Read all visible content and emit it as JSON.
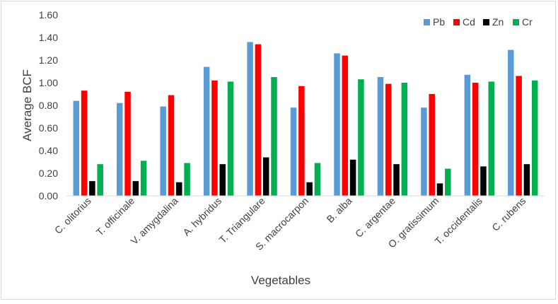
{
  "chart_data": {
    "type": "bar",
    "title": "",
    "xlabel": "Vegetables",
    "ylabel": "Average BCF",
    "ylim": [
      0,
      1.6
    ],
    "ytick_step": 0.2,
    "ytick_labels": [
      "0.00",
      "0.20",
      "0.40",
      "0.60",
      "0.80",
      "1.00",
      "1.20",
      "1.40",
      "1.60"
    ],
    "grid": false,
    "legend_position": "top-right",
    "categories": [
      "C. olitorius",
      "T. officinale",
      "V. amygdalina",
      "A. hybridus",
      "T. Triangulare",
      "S. macrocarpon",
      "B. alba",
      "C. argentae",
      "O. gratissimum",
      "T. occidentalis",
      "C. rubens"
    ],
    "series": [
      {
        "name": "Pb",
        "color": "#5b9bd5",
        "values": [
          0.84,
          0.82,
          0.79,
          1.14,
          1.36,
          0.78,
          1.26,
          1.05,
          0.78,
          1.07,
          1.29
        ]
      },
      {
        "name": "Cd",
        "color": "#ff0000",
        "values": [
          0.93,
          0.92,
          0.89,
          1.02,
          1.34,
          0.97,
          1.24,
          0.99,
          0.9,
          1.0,
          1.06
        ]
      },
      {
        "name": "Zn",
        "color": "#000000",
        "values": [
          0.13,
          0.13,
          0.12,
          0.28,
          0.34,
          0.12,
          0.32,
          0.28,
          0.11,
          0.26,
          0.28
        ]
      },
      {
        "name": "Cr",
        "color": "#00b050",
        "values": [
          0.28,
          0.31,
          0.29,
          1.01,
          1.05,
          0.29,
          1.03,
          1.0,
          0.24,
          1.01,
          1.02
        ]
      }
    ]
  }
}
